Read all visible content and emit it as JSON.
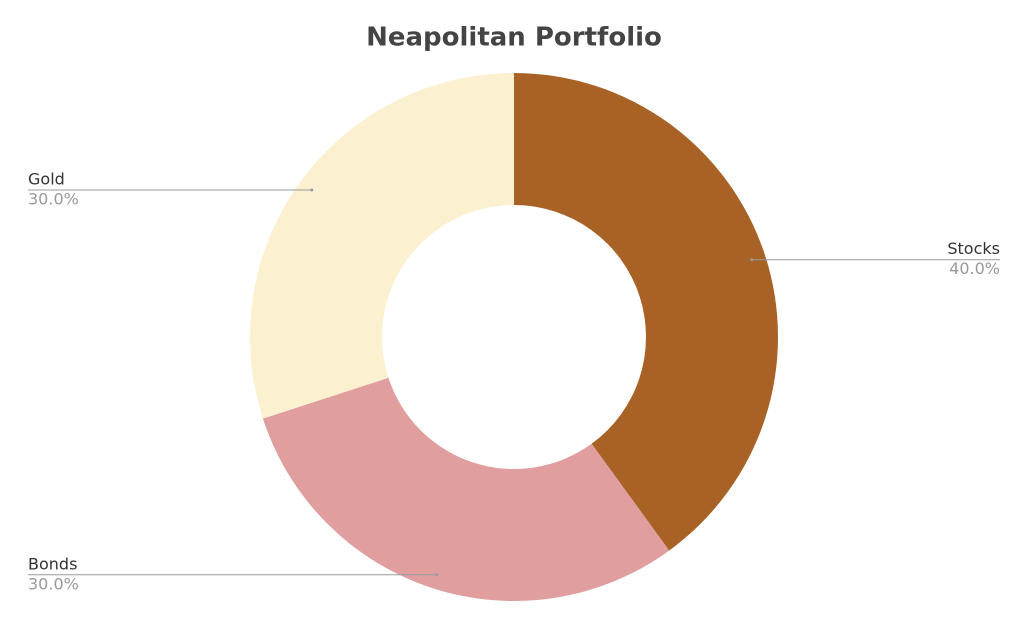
{
  "chart_data": {
    "type": "donut",
    "title": "Neapolitan Portfolio",
    "categories": [
      "Stocks",
      "Bonds",
      "Gold"
    ],
    "values": [
      40,
      30,
      30
    ],
    "value_labels": [
      "40.0%",
      "30.0%",
      "30.0%"
    ],
    "colors": [
      "#a86226",
      "#e09e9e",
      "#fbf0d0"
    ]
  }
}
